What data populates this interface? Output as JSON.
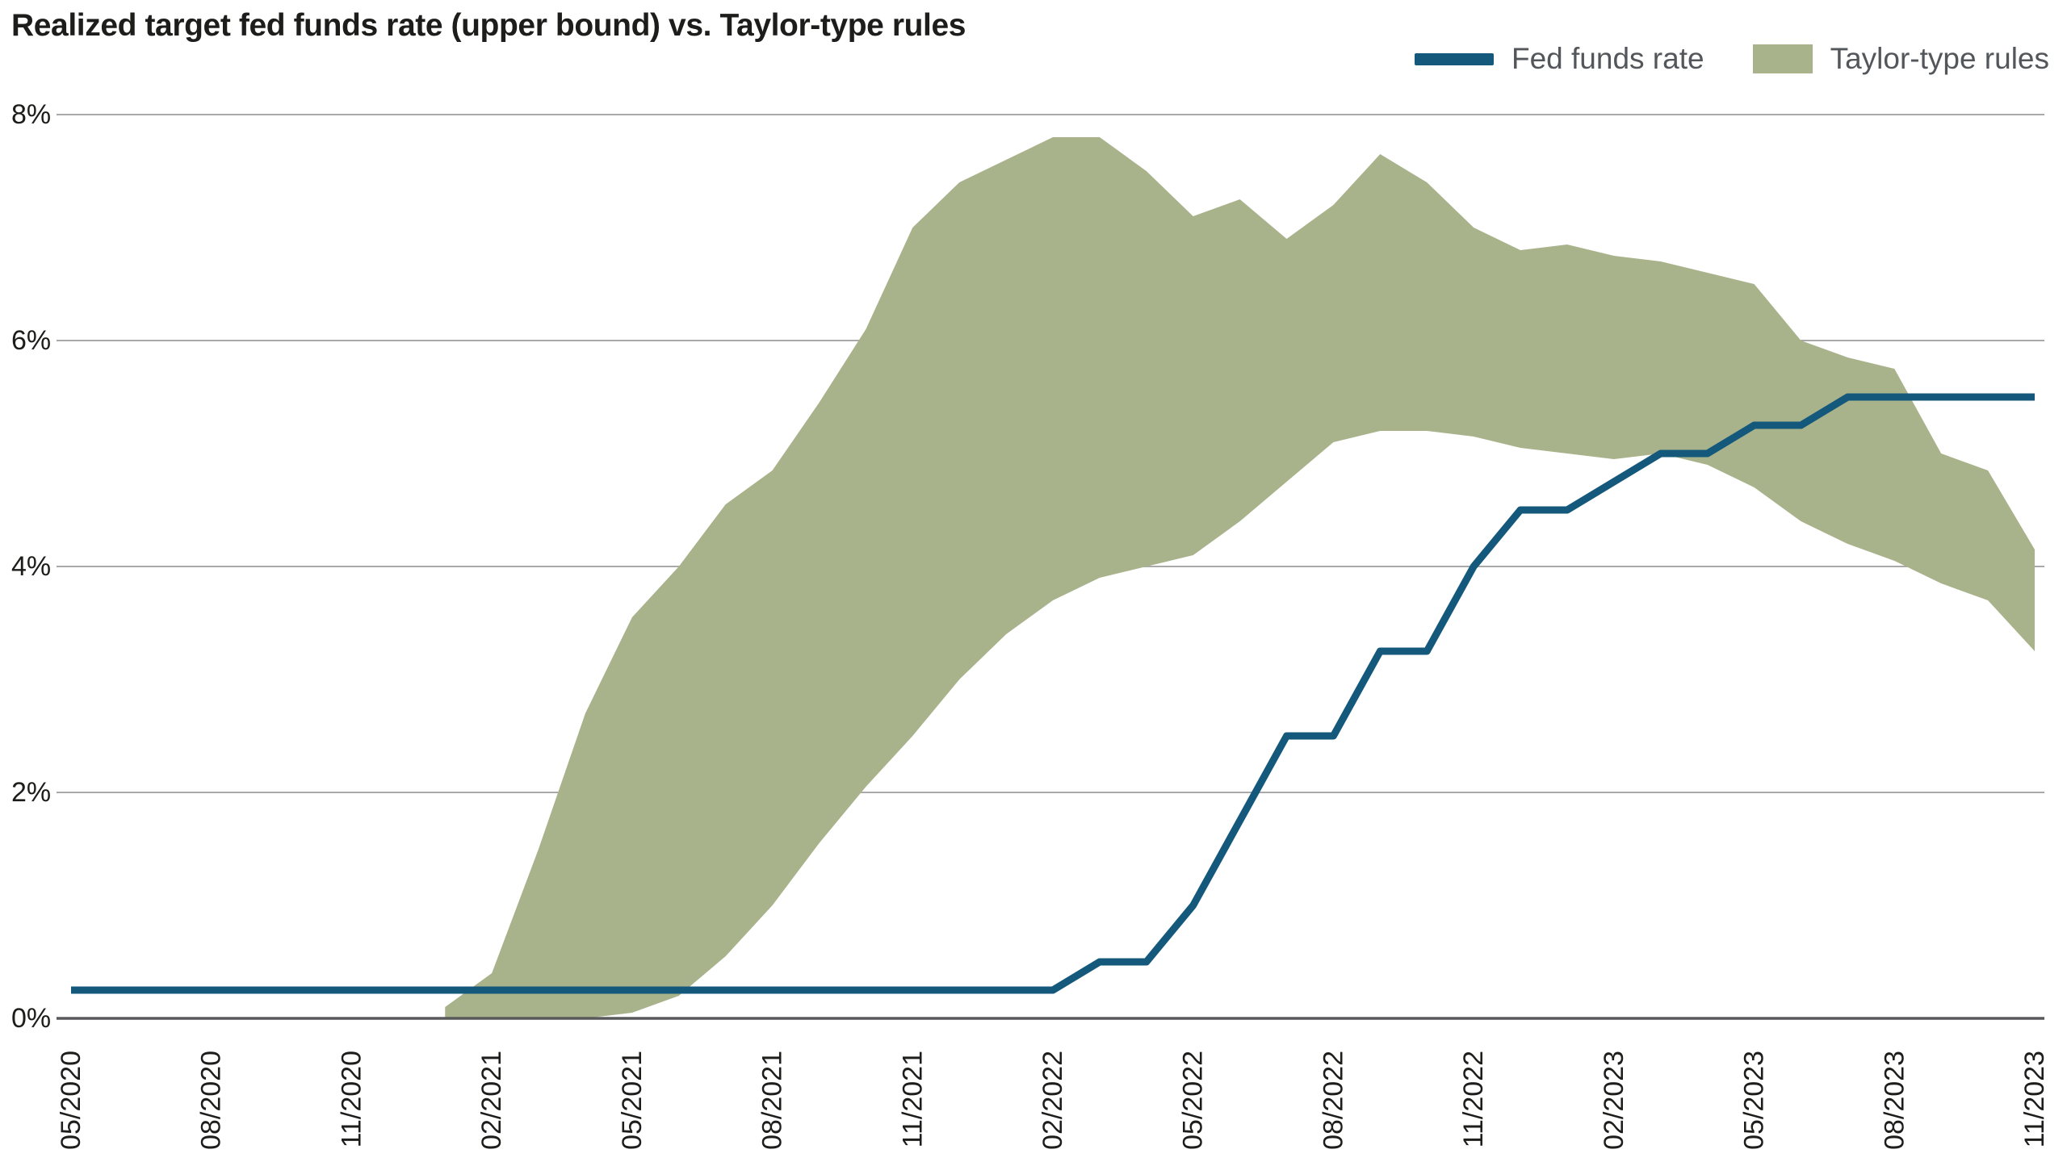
{
  "header": {
    "title": "Realized target fed funds rate (upper bound) vs. Taylor-type rules"
  },
  "legend": [
    {
      "label": "Fed funds rate",
      "type": "line",
      "color": "#14587c"
    },
    {
      "label": "Taylor-type rules",
      "type": "area",
      "color": "#a8b38b"
    }
  ],
  "chart_data": {
    "type": "line",
    "title": "Realized target fed funds rate (upper bound) vs. Taylor-type rules",
    "xlabel": "",
    "ylabel": "",
    "ylim": [
      0,
      8
    ],
    "grid": true,
    "grid_color": "#a9a9a9",
    "axis_color": "#58595b",
    "tick_label_color": "#1d1d1b",
    "legend_position": "top-right",
    "x_tick_every": 3,
    "yticks": [
      {
        "value": 0,
        "label": "0%"
      },
      {
        "value": 2,
        "label": "2%"
      },
      {
        "value": 4,
        "label": "4%"
      },
      {
        "value": 6,
        "label": "6%"
      },
      {
        "value": 8,
        "label": "8%"
      }
    ],
    "categories": [
      "05/2020",
      "06/2020",
      "07/2020",
      "08/2020",
      "09/2020",
      "10/2020",
      "11/2020",
      "12/2020",
      "01/2021",
      "02/2021",
      "03/2021",
      "04/2021",
      "05/2021",
      "06/2021",
      "07/2021",
      "08/2021",
      "09/2021",
      "10/2021",
      "11/2021",
      "12/2021",
      "01/2022",
      "02/2022",
      "03/2022",
      "04/2022",
      "05/2022",
      "06/2022",
      "07/2022",
      "08/2022",
      "09/2022",
      "10/2022",
      "11/2022",
      "12/2022",
      "01/2023",
      "02/2023",
      "03/2023",
      "04/2023",
      "05/2023",
      "06/2023",
      "07/2023",
      "08/2023",
      "09/2023",
      "10/2023",
      "11/2023"
    ],
    "series": [
      {
        "name": "Fed funds rate",
        "type": "line",
        "color": "#14587c",
        "values": [
          0.25,
          0.25,
          0.25,
          0.25,
          0.25,
          0.25,
          0.25,
          0.25,
          0.25,
          0.25,
          0.25,
          0.25,
          0.25,
          0.25,
          0.25,
          0.25,
          0.25,
          0.25,
          0.25,
          0.25,
          0.25,
          0.25,
          0.5,
          0.5,
          1.0,
          1.75,
          2.5,
          2.5,
          3.25,
          3.25,
          4.0,
          4.5,
          4.5,
          4.75,
          5.0,
          5.0,
          5.25,
          5.25,
          5.5,
          5.5,
          5.5,
          5.5,
          5.5
        ]
      },
      {
        "name": "Taylor-type rules",
        "type": "band",
        "color": "#a8b38b",
        "lower": [
          null,
          null,
          null,
          null,
          null,
          null,
          null,
          null,
          0,
          0,
          0,
          0,
          0.05,
          0.2,
          0.55,
          1.0,
          1.55,
          2.05,
          2.5,
          3.0,
          3.4,
          3.7,
          3.9,
          4.0,
          4.1,
          4.4,
          4.75,
          5.1,
          5.2,
          5.2,
          5.15,
          5.05,
          5.0,
          4.95,
          5.0,
          4.9,
          4.7,
          4.4,
          4.2,
          4.05,
          3.85,
          3.7,
          3.25
        ],
        "upper": [
          null,
          null,
          null,
          null,
          null,
          null,
          null,
          null,
          0.1,
          0.4,
          1.5,
          2.7,
          3.55,
          4.0,
          4.55,
          4.85,
          5.45,
          6.1,
          7.0,
          7.4,
          7.6,
          7.8,
          7.8,
          7.5,
          7.1,
          7.25,
          6.9,
          7.2,
          7.65,
          7.4,
          7.0,
          6.8,
          6.85,
          6.75,
          6.7,
          6.6,
          6.5,
          6.0,
          5.85,
          5.75,
          5.0,
          4.85,
          4.15
        ]
      }
    ]
  }
}
